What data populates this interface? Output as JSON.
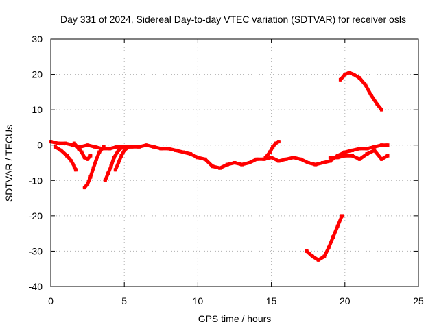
{
  "chart_data": {
    "type": "scatter",
    "title": "Day 331 of 2024, Sidereal Day-to-day VTEC variation (SDTVAR) for receiver osls",
    "xlabel": "GPS time / hours",
    "ylabel": "SDTVAR / TECUs",
    "xlim": [
      0,
      25
    ],
    "ylim": [
      -40,
      30
    ],
    "x_ticks": [
      0,
      5,
      10,
      15,
      20,
      25
    ],
    "x_tick_labels": [
      "0",
      "5",
      "10",
      "15",
      "20",
      "25"
    ],
    "y_ticks": [
      -40,
      -30,
      -20,
      -10,
      0,
      10,
      20,
      30
    ],
    "y_tick_labels": [
      "-40",
      "-30",
      "-20",
      "-10",
      "0",
      "10",
      "20",
      "30"
    ],
    "grid": true,
    "marker_color": "#ff0000",
    "series": [
      {
        "name": "main trace",
        "x": [
          0.0,
          0.5,
          1.0,
          1.5,
          2.0,
          2.5,
          3.0,
          3.5,
          4.0,
          4.5,
          5.0,
          5.5,
          6.0,
          6.5,
          7.0,
          7.5,
          8.0,
          8.5,
          9.0,
          9.5,
          10.0,
          10.5,
          11.0,
          11.5,
          12.0,
          12.5,
          13.0,
          13.5,
          14.0,
          14.5,
          15.0,
          15.5,
          16.0,
          16.5,
          17.0,
          17.5,
          18.0,
          18.5,
          19.0,
          19.5,
          20.0,
          20.5,
          21.0,
          21.5,
          22.0,
          22.5,
          22.9
        ],
        "y": [
          1,
          0.5,
          0.5,
          0,
          -0.5,
          0,
          -0.5,
          -1,
          -1,
          -0.5,
          -0.5,
          -0.5,
          -0.5,
          0,
          -0.5,
          -1,
          -1,
          -1.5,
          -2,
          -2.5,
          -3.5,
          -4,
          -6,
          -6.5,
          -5.5,
          -5,
          -5.5,
          -5,
          -4,
          -4,
          -3.5,
          -4.5,
          -4,
          -3.5,
          -4,
          -5,
          -5.5,
          -5,
          -4.5,
          -3,
          -2,
          -1.5,
          -1,
          -1,
          -0.5,
          0,
          0
        ]
      },
      {
        "name": "lower trace (late)",
        "x": [
          19.0,
          19.5,
          20.0,
          20.5,
          21.0,
          21.5,
          22.0,
          22.5,
          22.9
        ],
        "y": [
          -3.5,
          -3.5,
          -3,
          -3,
          -4,
          -2.5,
          -1.5,
          -4,
          -3
        ]
      },
      {
        "name": "upper arc",
        "x": [
          19.7,
          20.0,
          20.3,
          20.6,
          21.0,
          21.4,
          21.8,
          22.2,
          22.5
        ],
        "y": [
          18.5,
          20,
          20.5,
          20,
          19,
          17,
          14,
          11.5,
          10
        ]
      },
      {
        "name": "lower arc",
        "x": [
          17.4,
          17.8,
          18.2,
          18.6,
          18.9,
          19.2,
          19.5,
          19.8
        ],
        "y": [
          -30,
          -31.5,
          -32.5,
          -31.5,
          -29,
          -26,
          -23,
          -20
        ]
      },
      {
        "name": "early descending arc A",
        "x": [
          0.3,
          0.7,
          1.1,
          1.4,
          1.6,
          1.7
        ],
        "y": [
          -0.5,
          -1.5,
          -3,
          -4.5,
          -6,
          -7
        ]
      },
      {
        "name": "early descending arc B",
        "x": [
          1.6,
          1.9,
          2.1,
          2.3,
          2.5,
          2.7
        ],
        "y": [
          0.5,
          -1,
          -2,
          -3.5,
          -4,
          -3
        ]
      },
      {
        "name": "early ascending arc C",
        "x": [
          2.3,
          2.5,
          2.7,
          2.9,
          3.1,
          3.3,
          3.6
        ],
        "y": [
          -12,
          -11,
          -9,
          -6.5,
          -4,
          -2,
          -0.5
        ]
      },
      {
        "name": "early ascending arc D",
        "x": [
          3.7,
          3.9,
          4.1,
          4.3,
          4.6,
          4.9
        ],
        "y": [
          -10,
          -8,
          -6,
          -3.5,
          -1.5,
          -0.5
        ]
      },
      {
        "name": "early ascending arc E",
        "x": [
          4.4,
          4.6,
          4.8,
          5.0,
          5.3
        ],
        "y": [
          -7,
          -5,
          -3,
          -1.5,
          -0.5
        ]
      },
      {
        "name": "spike near 15",
        "x": [
          14.6,
          14.9,
          15.1,
          15.3,
          15.5
        ],
        "y": [
          -3.5,
          -2,
          -0.5,
          0.5,
          1
        ]
      }
    ]
  }
}
